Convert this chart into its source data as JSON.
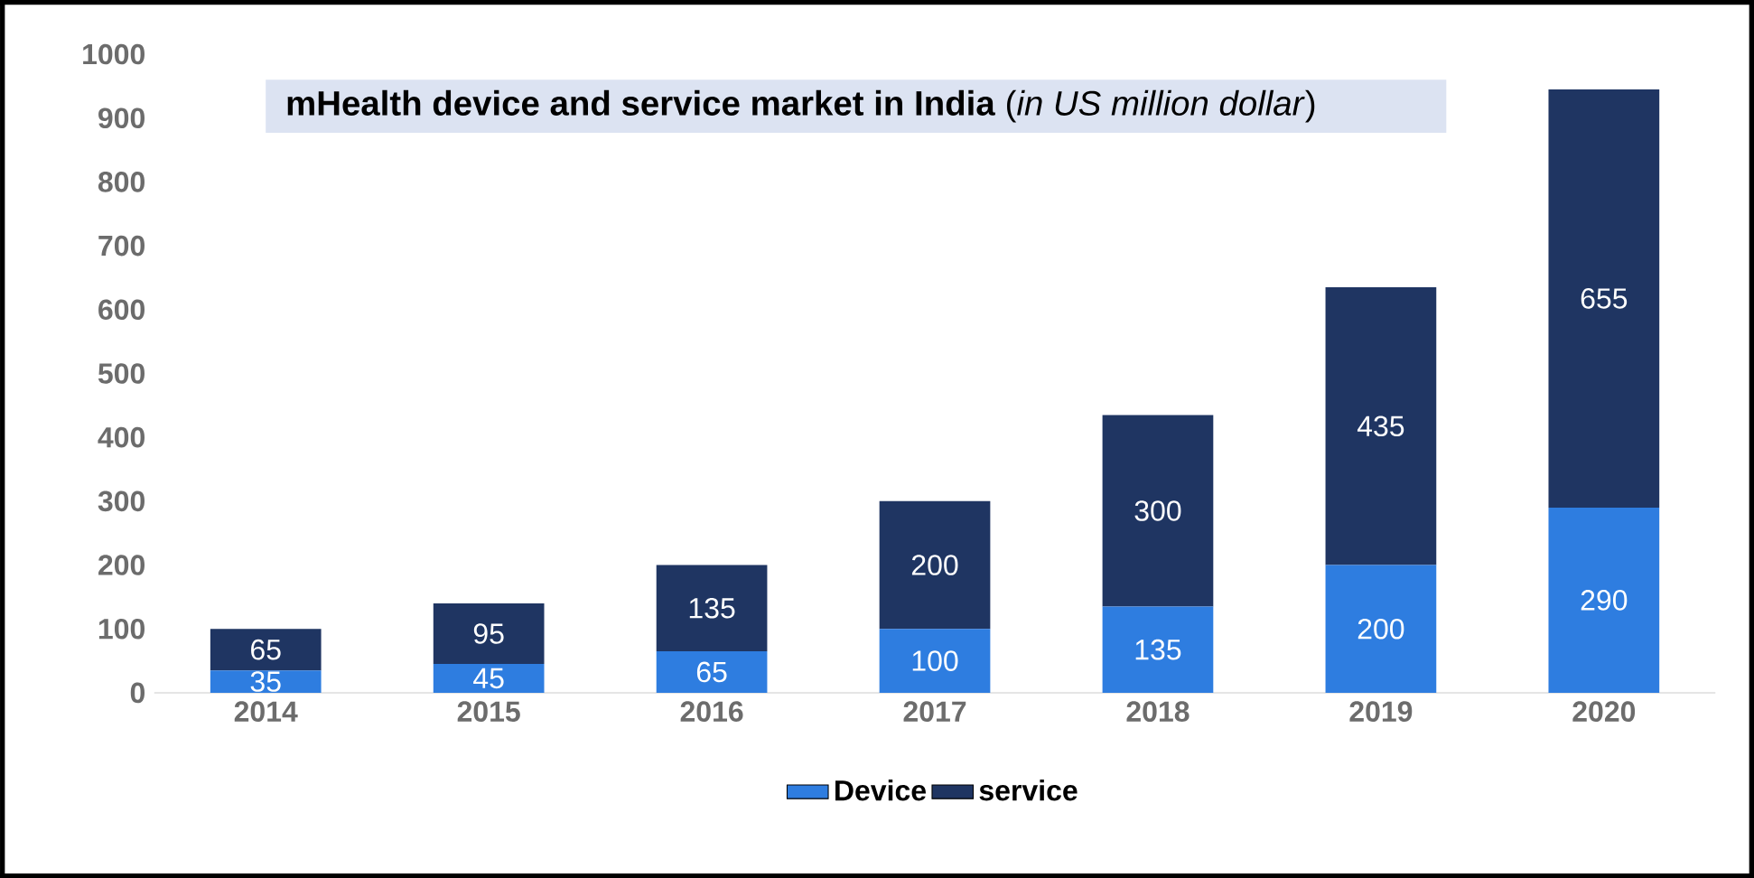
{
  "chart_data": {
    "type": "bar",
    "stacked": true,
    "title": "**mHealth device and service market in India** (*in US million dollar*)",
    "categories": [
      "2014",
      "2015",
      "2016",
      "2017",
      "2018",
      "2019",
      "2020"
    ],
    "series": [
      {
        "name": "Device",
        "color": "#2e7de0",
        "values": [
          35,
          45,
          65,
          100,
          135,
          200,
          290
        ]
      },
      {
        "name": "service",
        "color": "#1f3562",
        "values": [
          65,
          95,
          135,
          200,
          300,
          435,
          655
        ]
      }
    ],
    "ylim": [
      0,
      1000
    ],
    "yticks": [
      0,
      100,
      200,
      300,
      400,
      500,
      600,
      700,
      800,
      900,
      1000
    ],
    "data_labels": true,
    "legend": "bottom",
    "grid": false
  }
}
